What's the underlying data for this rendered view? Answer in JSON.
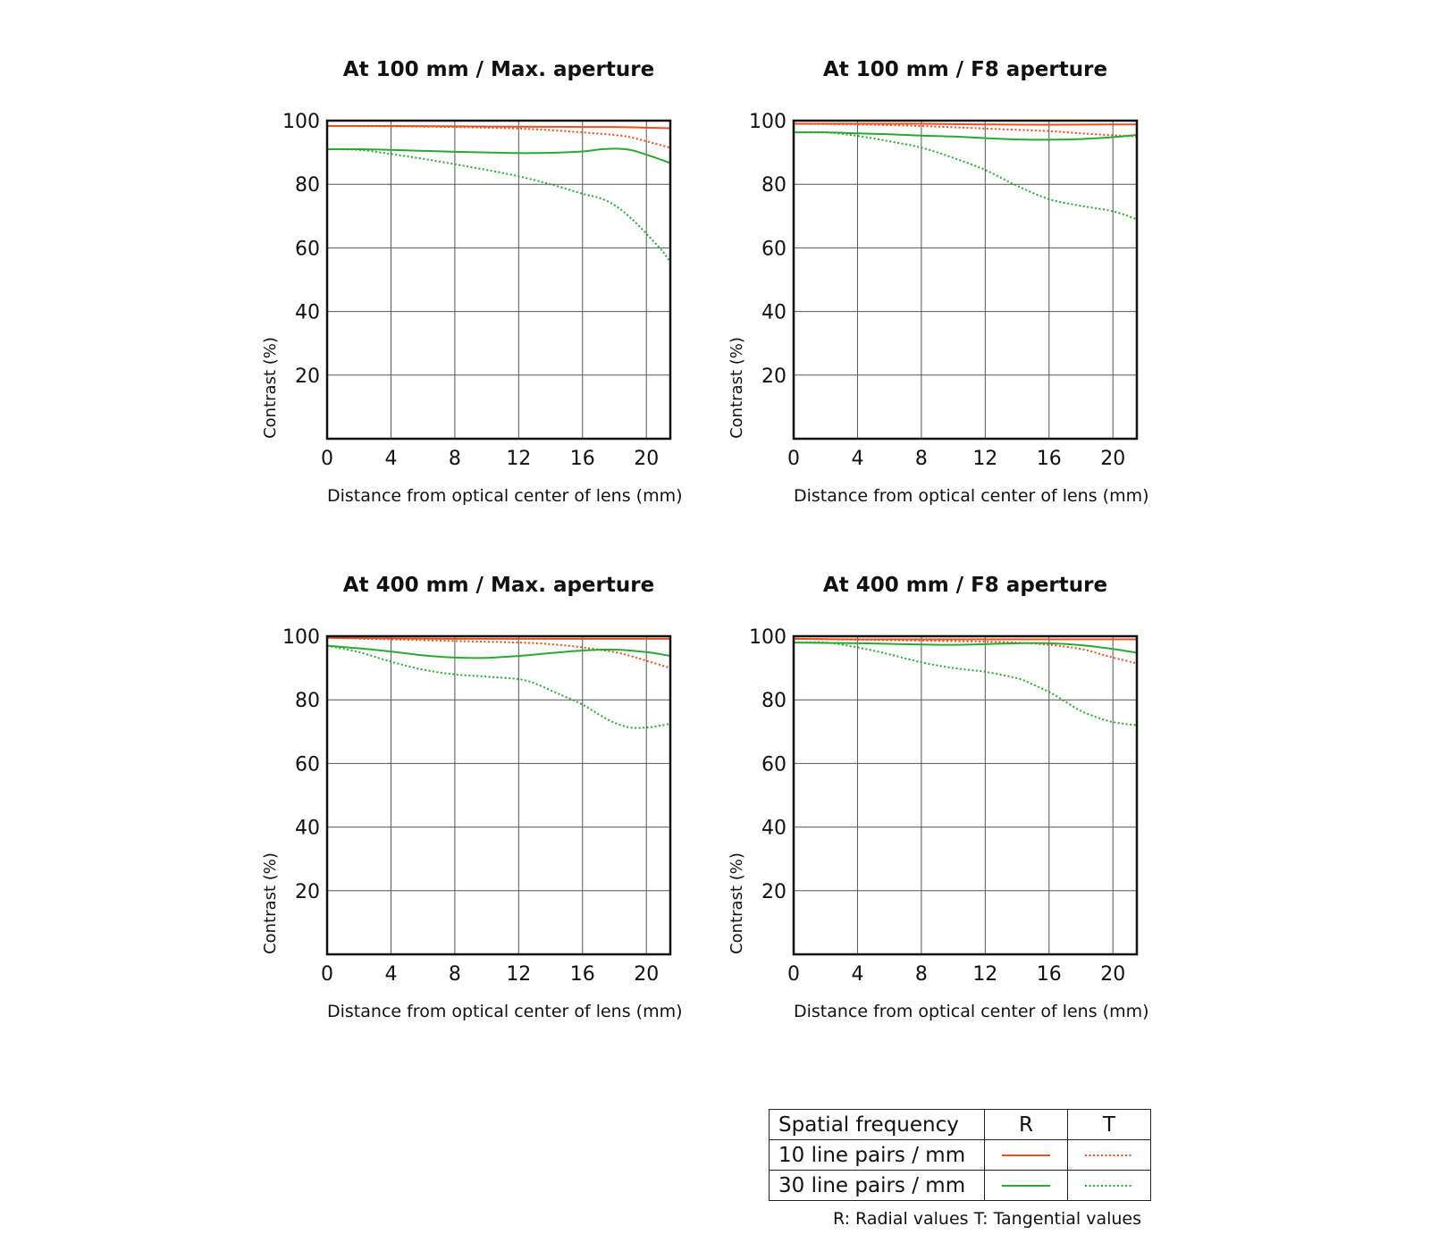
{
  "colors": {
    "ten_lp": "#e8501f",
    "thirty_lp": "#2ba831"
  },
  "chart_data": [
    {
      "type": "line",
      "title": "At 100 mm / Max. aperture",
      "xlabel": "Distance from optical center of lens (mm)",
      "ylabel": "Contrast (%)",
      "xlim": [
        0,
        21.5
      ],
      "ylim": [
        0,
        100
      ],
      "xticks": [
        0,
        4,
        8,
        12,
        16,
        20
      ],
      "yticks": [
        20,
        40,
        60,
        80,
        100
      ],
      "grid": true,
      "series": [
        {
          "name": "10 line pairs / mm R",
          "style": "solid",
          "color": "#e8501f",
          "x": [
            0,
            4,
            8,
            12,
            16,
            18,
            20,
            21.5
          ],
          "y": [
            98.3,
            98.3,
            98.2,
            98.1,
            98.0,
            98.0,
            97.8,
            97.6
          ]
        },
        {
          "name": "10 line pairs / mm T",
          "style": "dotted",
          "color": "#e8501f",
          "x": [
            0,
            4,
            8,
            12,
            14,
            16,
            18,
            19,
            20,
            21.5
          ],
          "y": [
            98.3,
            98.2,
            98.0,
            97.5,
            97.0,
            96.3,
            95.5,
            94.8,
            93.5,
            91.5
          ]
        },
        {
          "name": "30 line pairs / mm R",
          "style": "solid",
          "color": "#2ba831",
          "x": [
            0,
            2,
            4,
            6,
            8,
            10,
            12,
            14,
            16,
            17,
            18,
            19,
            20,
            21.5
          ],
          "y": [
            91.0,
            91.0,
            90.8,
            90.5,
            90.2,
            90.0,
            89.8,
            89.9,
            90.3,
            90.9,
            91.2,
            90.8,
            89.3,
            86.7
          ]
        },
        {
          "name": "30 line pairs / mm T",
          "style": "dotted",
          "color": "#2ba831",
          "x": [
            0,
            2,
            4,
            6,
            8,
            10,
            12,
            14,
            16,
            17,
            18,
            19,
            20,
            21,
            21.5
          ],
          "y": [
            91.0,
            90.8,
            89.5,
            88.0,
            86.3,
            84.5,
            82.5,
            80.0,
            77.0,
            75.8,
            73.5,
            69.5,
            64.5,
            59.0,
            55.5
          ]
        }
      ]
    },
    {
      "type": "line",
      "title": "At 100 mm / F8 aperture",
      "xlabel": "Distance from optical center of lens (mm)",
      "ylabel": "Contrast (%)",
      "xlim": [
        0,
        21.5
      ],
      "ylim": [
        0,
        100
      ],
      "xticks": [
        0,
        4,
        8,
        12,
        16,
        20
      ],
      "yticks": [
        20,
        40,
        60,
        80,
        100
      ],
      "grid": true,
      "series": [
        {
          "name": "10 line pairs / mm R",
          "style": "solid",
          "color": "#e8501f",
          "x": [
            0,
            4,
            8,
            12,
            16,
            20,
            21.5
          ],
          "y": [
            99.0,
            99.0,
            99.0,
            98.8,
            98.7,
            98.8,
            98.8
          ]
        },
        {
          "name": "10 line pairs / mm T",
          "style": "dotted",
          "color": "#e8501f",
          "x": [
            0,
            4,
            8,
            12,
            16,
            18,
            20,
            21.5
          ],
          "y": [
            99.0,
            98.8,
            98.3,
            97.5,
            96.7,
            96.0,
            95.4,
            95.0
          ]
        },
        {
          "name": "30 line pairs / mm R",
          "style": "solid",
          "color": "#2ba831",
          "x": [
            0,
            2,
            4,
            6,
            8,
            10,
            12,
            14,
            16,
            18,
            20,
            21.5
          ],
          "y": [
            96.3,
            96.3,
            96.0,
            95.7,
            95.3,
            95.0,
            94.5,
            94.1,
            94.0,
            94.2,
            94.8,
            95.5
          ]
        },
        {
          "name": "30 line pairs / mm T",
          "style": "dotted",
          "color": "#2ba831",
          "x": [
            0,
            2,
            4,
            6,
            8,
            10,
            12,
            14,
            16,
            18,
            20,
            21.5
          ],
          "y": [
            96.3,
            96.3,
            95.2,
            93.5,
            91.5,
            88.3,
            84.5,
            79.5,
            75.3,
            73.2,
            71.5,
            69.0
          ]
        }
      ]
    },
    {
      "type": "line",
      "title": "At 400 mm / Max. aperture",
      "xlabel": "Distance from optical center of lens (mm)",
      "ylabel": "Contrast (%)",
      "xlim": [
        0,
        21.5
      ],
      "ylim": [
        0,
        100
      ],
      "xticks": [
        0,
        4,
        8,
        12,
        16,
        20
      ],
      "yticks": [
        20,
        40,
        60,
        80,
        100
      ],
      "grid": true,
      "series": [
        {
          "name": "10 line pairs / mm R",
          "style": "solid",
          "color": "#e8501f",
          "x": [
            0,
            4,
            8,
            12,
            16,
            20,
            21.5
          ],
          "y": [
            99.5,
            99.3,
            99.2,
            99.2,
            99.2,
            99.2,
            99.2
          ]
        },
        {
          "name": "10 line pairs / mm T",
          "style": "dotted",
          "color": "#e8501f",
          "x": [
            0,
            4,
            8,
            12,
            14,
            16,
            18,
            19,
            20,
            21.5
          ],
          "y": [
            99.5,
            99.0,
            98.5,
            98.0,
            97.5,
            96.5,
            95.0,
            93.8,
            92.3,
            90.0
          ]
        },
        {
          "name": "30 line pairs / mm R",
          "style": "solid",
          "color": "#2ba831",
          "x": [
            0,
            2,
            4,
            6,
            8,
            10,
            12,
            14,
            16,
            18,
            20,
            21.5
          ],
          "y": [
            97.0,
            96.2,
            95.2,
            94.0,
            93.3,
            93.2,
            93.8,
            94.7,
            95.5,
            95.8,
            95.0,
            93.8
          ]
        },
        {
          "name": "30 line pairs / mm T",
          "style": "dotted",
          "color": "#2ba831",
          "x": [
            0,
            2,
            4,
            6,
            8,
            10,
            12,
            13,
            14,
            15,
            16,
            17,
            18,
            19,
            20,
            21,
            21.5
          ],
          "y": [
            97.0,
            95.0,
            92.0,
            89.5,
            88.0,
            87.3,
            86.5,
            85.2,
            83.0,
            80.8,
            78.5,
            75.5,
            72.8,
            71.3,
            71.3,
            72.0,
            72.5
          ]
        }
      ]
    },
    {
      "type": "line",
      "title": "At 400 mm / F8 aperture",
      "xlabel": "Distance from optical center of lens (mm)",
      "ylabel": "Contrast (%)",
      "xlim": [
        0,
        21.5
      ],
      "ylim": [
        0,
        100
      ],
      "xticks": [
        0,
        4,
        8,
        12,
        16,
        20
      ],
      "yticks": [
        20,
        40,
        60,
        80,
        100
      ],
      "grid": true,
      "series": [
        {
          "name": "10 line pairs / mm R",
          "style": "solid",
          "color": "#e8501f",
          "x": [
            0,
            4,
            8,
            12,
            16,
            20,
            21.5
          ],
          "y": [
            99.2,
            99.0,
            99.0,
            99.0,
            99.0,
            99.0,
            99.0
          ]
        },
        {
          "name": "10 line pairs / mm T",
          "style": "dotted",
          "color": "#e8501f",
          "x": [
            0,
            4,
            8,
            12,
            14,
            16,
            18,
            19,
            20,
            21.5
          ],
          "y": [
            99.2,
            98.9,
            98.6,
            98.3,
            98.0,
            97.3,
            96.0,
            94.7,
            93.3,
            91.5
          ]
        },
        {
          "name": "30 line pairs / mm R",
          "style": "solid",
          "color": "#2ba831",
          "x": [
            0,
            2,
            4,
            6,
            8,
            10,
            12,
            14,
            16,
            18,
            20,
            21.5
          ],
          "y": [
            98.0,
            97.9,
            97.8,
            97.6,
            97.4,
            97.3,
            97.5,
            97.8,
            97.8,
            97.2,
            96.0,
            94.8
          ]
        },
        {
          "name": "30 line pairs / mm T",
          "style": "dotted",
          "color": "#2ba831",
          "x": [
            0,
            2,
            4,
            6,
            8,
            10,
            12,
            14,
            15,
            16,
            17,
            18,
            19,
            20,
            21.5
          ],
          "y": [
            98.0,
            98.0,
            96.5,
            94.3,
            91.8,
            90.0,
            88.8,
            86.8,
            84.8,
            82.5,
            79.5,
            76.5,
            74.5,
            73.0,
            72.0
          ]
        }
      ]
    }
  ],
  "legend": {
    "header": {
      "label": "Spatial frequency",
      "r": "R",
      "t": "T"
    },
    "rows": [
      {
        "label": "10 line pairs / mm",
        "color": "#e8501f"
      },
      {
        "label": "30 line pairs / mm",
        "color": "#2ba831"
      }
    ],
    "note": "R: Radial values  T: Tangential values"
  }
}
